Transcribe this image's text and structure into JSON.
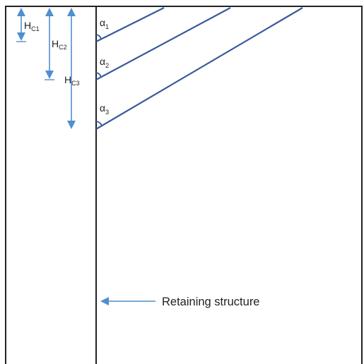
{
  "diagram": {
    "depth_labels": [
      {
        "main": "H",
        "sub": "C1"
      },
      {
        "main": "H",
        "sub": "C2"
      },
      {
        "main": "H",
        "sub": "C3"
      }
    ],
    "angle_labels": [
      {
        "main": "α",
        "sub": "1"
      },
      {
        "main": "α",
        "sub": "2"
      },
      {
        "main": "α",
        "sub": "3"
      }
    ],
    "structure_label": "Retaining structure",
    "colors": {
      "outline": "#222222",
      "slope_line": "#3a5a9a",
      "dimension_arrow": "#4f8fd0",
      "text": "#222222"
    }
  }
}
